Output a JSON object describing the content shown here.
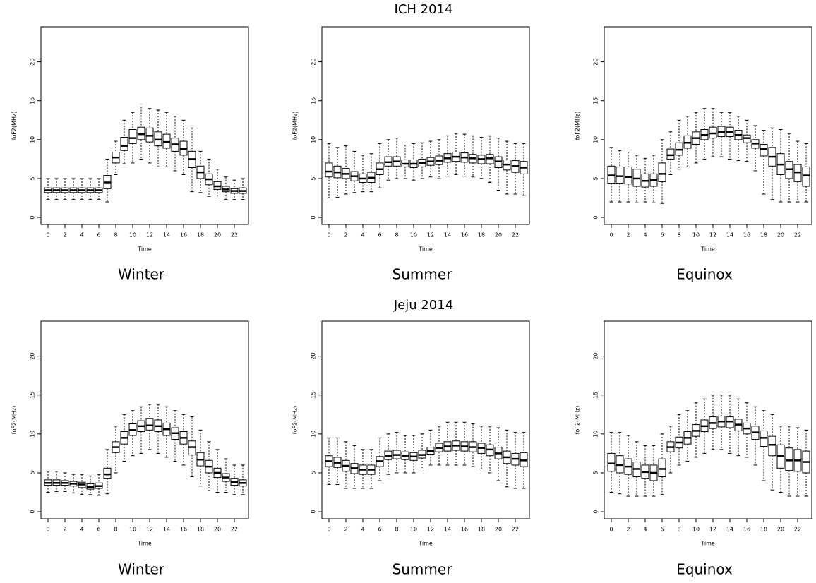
{
  "figure_titles": [
    "ICH 2014",
    "Jeju 2014"
  ],
  "chart_data": [
    {
      "type": "box",
      "caption": "Winter",
      "xlabel": "Time",
      "ylabel": "foF2(MHz)",
      "categories": [
        0,
        null,
        2,
        null,
        4,
        null,
        6,
        null,
        8,
        null,
        10,
        null,
        12,
        null,
        14,
        null,
        16,
        null,
        18,
        null,
        20,
        null,
        22,
        null
      ],
      "ylim": [
        -0.9,
        24.5
      ],
      "yticks": [
        0,
        5,
        10,
        15,
        20
      ],
      "min": [
        2.3,
        2.3,
        2.3,
        2.3,
        2.3,
        2.3,
        2.3,
        2.0,
        5.5,
        6.9,
        7.0,
        7.5,
        7.0,
        6.5,
        6.5,
        6.0,
        5.5,
        3.3,
        3.2,
        2.7,
        2.5,
        2.3,
        2.3,
        2.3
      ],
      "q1": [
        3.2,
        3.2,
        3.2,
        3.2,
        3.2,
        3.2,
        3.2,
        3.7,
        7.0,
        8.6,
        9.5,
        10.0,
        9.7,
        9.2,
        8.9,
        8.5,
        8.0,
        6.4,
        5.0,
        4.2,
        3.6,
        3.3,
        3.1,
        3.1
      ],
      "median": [
        3.5,
        3.5,
        3.5,
        3.5,
        3.5,
        3.5,
        3.5,
        4.5,
        7.7,
        9.2,
        10.2,
        10.7,
        10.5,
        10.0,
        9.7,
        9.4,
        8.8,
        7.5,
        5.8,
        4.9,
        4.0,
        3.6,
        3.4,
        3.4
      ],
      "q3": [
        3.8,
        3.8,
        3.8,
        3.8,
        3.8,
        3.8,
        3.8,
        5.4,
        8.4,
        10.3,
        11.3,
        11.6,
        11.5,
        11.0,
        10.7,
        10.2,
        9.8,
        8.5,
        6.6,
        5.6,
        4.6,
        4.0,
        3.7,
        3.8
      ],
      "max": [
        5.0,
        5.0,
        5.0,
        5.0,
        5.0,
        5.0,
        5.0,
        7.5,
        9.8,
        12.5,
        13.5,
        14.2,
        14.0,
        13.8,
        13.5,
        13.0,
        12.5,
        11.5,
        8.5,
        7.5,
        6.2,
        5.2,
        4.8,
        5.0
      ]
    },
    {
      "type": "box",
      "caption": "Summer",
      "xlabel": "Time",
      "ylabel": "foF2(MHz)",
      "categories": [
        0,
        null,
        2,
        null,
        4,
        null,
        6,
        null,
        8,
        null,
        10,
        null,
        12,
        null,
        14,
        null,
        16,
        null,
        18,
        null,
        20,
        null,
        22,
        null
      ],
      "ylim": [
        -0.9,
        24.5
      ],
      "yticks": [
        0,
        5,
        10,
        15,
        20
      ],
      "min": [
        2.5,
        2.6,
        3.0,
        3.2,
        3.3,
        3.3,
        3.8,
        4.8,
        5.0,
        5.0,
        4.8,
        5.0,
        5.2,
        5.0,
        5.3,
        5.5,
        5.3,
        5.2,
        5.0,
        4.5,
        3.5,
        3.0,
        3.0,
        2.8
      ],
      "q1": [
        5.2,
        5.1,
        5.0,
        4.7,
        4.5,
        4.5,
        5.5,
        6.6,
        6.6,
        6.5,
        6.4,
        6.5,
        6.7,
        6.8,
        7.1,
        7.2,
        7.1,
        7.0,
        6.9,
        6.9,
        6.4,
        6.1,
        5.8,
        5.6
      ],
      "median": [
        5.9,
        5.8,
        5.6,
        5.3,
        5.0,
        5.1,
        6.2,
        7.1,
        7.2,
        6.9,
        6.9,
        7.0,
        7.2,
        7.3,
        7.6,
        7.8,
        7.7,
        7.6,
        7.5,
        7.6,
        7.2,
        6.8,
        6.6,
        6.4
      ],
      "q3": [
        7.0,
        6.6,
        6.3,
        5.9,
        5.6,
        5.8,
        7.0,
        7.8,
        7.8,
        7.4,
        7.4,
        7.5,
        7.7,
        7.9,
        8.2,
        8.4,
        8.3,
        8.1,
        8.0,
        8.1,
        7.8,
        7.4,
        7.3,
        7.2
      ],
      "max": [
        9.5,
        9.0,
        9.2,
        8.5,
        8.0,
        8.2,
        9.5,
        10.0,
        10.2,
        9.3,
        9.5,
        9.6,
        9.8,
        10.0,
        10.5,
        10.8,
        10.7,
        10.5,
        10.3,
        10.5,
        10.2,
        9.8,
        9.5,
        9.5
      ]
    },
    {
      "type": "box",
      "caption": "Equinox",
      "xlabel": "Time",
      "ylabel": "foF2(MHz)",
      "categories": [
        0,
        null,
        2,
        null,
        4,
        null,
        6,
        null,
        8,
        null,
        10,
        null,
        12,
        null,
        14,
        null,
        16,
        null,
        18,
        null,
        20,
        null,
        22,
        null
      ],
      "ylim": [
        -0.9,
        24.5
      ],
      "yticks": [
        0,
        5,
        10,
        15,
        20
      ],
      "min": [
        2.0,
        2.0,
        2.0,
        1.9,
        2.0,
        1.9,
        1.8,
        5.5,
        6.2,
        6.5,
        7.0,
        7.5,
        7.8,
        7.8,
        7.5,
        7.3,
        7.2,
        6.0,
        3.0,
        2.3,
        2.0,
        2.0,
        2.0,
        2.0
      ],
      "q1": [
        4.4,
        4.4,
        4.3,
        4.0,
        3.9,
        4.0,
        4.6,
        7.5,
        8.0,
        8.9,
        9.4,
        10.0,
        10.2,
        10.4,
        10.4,
        10.0,
        9.6,
        8.9,
        7.9,
        6.6,
        5.5,
        5.0,
        4.6,
        4.0
      ],
      "median": [
        5.4,
        5.3,
        5.2,
        5.0,
        4.7,
        4.8,
        5.6,
        8.0,
        8.7,
        9.6,
        10.2,
        10.6,
        10.8,
        11.0,
        11.0,
        10.6,
        10.2,
        9.5,
        8.8,
        7.8,
        6.8,
        6.2,
        5.8,
        5.4
      ],
      "q3": [
        6.6,
        6.5,
        6.5,
        6.2,
        5.6,
        5.6,
        7.0,
        8.8,
        9.6,
        10.5,
        11.0,
        11.3,
        11.6,
        11.7,
        11.6,
        11.2,
        10.6,
        10.0,
        9.4,
        9.0,
        8.2,
        7.2,
        6.8,
        6.5
      ],
      "max": [
        9.0,
        8.6,
        8.4,
        8.0,
        7.6,
        8.0,
        10.0,
        11.0,
        12.5,
        13.0,
        13.5,
        14.0,
        14.0,
        13.5,
        13.5,
        13.0,
        12.5,
        11.8,
        11.2,
        11.5,
        11.3,
        10.8,
        9.8,
        9.5
      ]
    },
    {
      "type": "box",
      "caption": "Winter",
      "xlabel": "Time",
      "ylabel": "foF2(MHz)",
      "categories": [
        0,
        null,
        2,
        null,
        4,
        null,
        6,
        null,
        8,
        null,
        10,
        null,
        12,
        null,
        14,
        null,
        16,
        null,
        18,
        null,
        20,
        null,
        22,
        null
      ],
      "ylim": [
        -0.9,
        24.5
      ],
      "yticks": [
        0,
        5,
        10,
        15,
        20
      ],
      "min": [
        2.5,
        2.6,
        2.6,
        2.4,
        2.2,
        2.2,
        2.1,
        2.3,
        5.0,
        6.5,
        7.2,
        7.5,
        8.0,
        7.5,
        7.0,
        6.5,
        6.0,
        4.5,
        3.3,
        2.7,
        2.5,
        2.5,
        2.2,
        2.2
      ],
      "q1": [
        3.4,
        3.4,
        3.4,
        3.3,
        3.1,
        2.9,
        3.0,
        4.3,
        7.6,
        8.7,
        9.8,
        10.3,
        10.5,
        10.3,
        9.8,
        9.3,
        8.7,
        7.3,
        5.9,
        5.0,
        4.4,
        3.9,
        3.4,
        3.3
      ],
      "median": [
        3.7,
        3.7,
        3.7,
        3.6,
        3.5,
        3.2,
        3.3,
        4.8,
        8.3,
        9.5,
        10.5,
        11.0,
        11.1,
        11.0,
        10.6,
        10.1,
        9.5,
        8.3,
        6.7,
        5.8,
        5.0,
        4.4,
        3.8,
        3.7
      ],
      "q3": [
        4.1,
        4.1,
        4.0,
        3.9,
        3.8,
        3.6,
        3.7,
        5.6,
        9.0,
        10.3,
        11.3,
        11.7,
        12.0,
        11.8,
        11.4,
        10.8,
        10.3,
        9.1,
        7.6,
        6.6,
        5.6,
        4.9,
        4.3,
        4.1
      ],
      "max": [
        5.2,
        5.2,
        5.0,
        4.8,
        4.8,
        4.6,
        4.8,
        8.0,
        11.0,
        12.5,
        13.0,
        13.5,
        13.8,
        13.8,
        13.5,
        13.0,
        12.5,
        12.2,
        10.5,
        9.0,
        8.0,
        6.8,
        6.0,
        6.0
      ]
    },
    {
      "type": "box",
      "caption": "Summer",
      "xlabel": "Time",
      "ylabel": "foF2(MHz)",
      "categories": [
        0,
        null,
        2,
        null,
        4,
        null,
        6,
        null,
        8,
        null,
        10,
        null,
        12,
        null,
        14,
        null,
        16,
        null,
        18,
        null,
        20,
        null,
        22,
        null
      ],
      "ylim": [
        -0.9,
        24.5
      ],
      "yticks": [
        0,
        5,
        10,
        15,
        20
      ],
      "min": [
        3.5,
        3.5,
        3.0,
        3.0,
        3.0,
        3.0,
        4.0,
        4.8,
        5.0,
        5.0,
        5.0,
        5.5,
        6.0,
        6.0,
        6.0,
        6.0,
        6.0,
        5.8,
        5.5,
        5.0,
        4.0,
        3.2,
        3.0,
        3.0
      ],
      "q1": [
        5.8,
        5.7,
        5.2,
        4.9,
        4.8,
        4.8,
        5.8,
        6.7,
        6.8,
        6.7,
        6.6,
        6.9,
        7.4,
        7.7,
        7.8,
        7.9,
        7.8,
        7.7,
        7.5,
        7.2,
        6.8,
        6.2,
        6.0,
        5.8
      ],
      "median": [
        6.5,
        6.3,
        5.9,
        5.6,
        5.4,
        5.4,
        6.5,
        7.2,
        7.3,
        7.2,
        7.1,
        7.3,
        7.8,
        8.2,
        8.4,
        8.5,
        8.4,
        8.3,
        8.2,
        8.0,
        7.5,
        7.0,
        6.8,
        6.6
      ],
      "q3": [
        7.2,
        7.0,
        6.6,
        6.2,
        6.0,
        6.0,
        7.1,
        7.8,
        7.9,
        7.7,
        7.6,
        7.9,
        8.3,
        8.8,
        9.0,
        9.1,
        9.0,
        9.0,
        8.8,
        8.6,
        8.3,
        7.8,
        7.5,
        7.6
      ],
      "max": [
        9.5,
        9.5,
        9.0,
        8.5,
        8.0,
        8.0,
        9.5,
        10.0,
        10.2,
        9.8,
        9.8,
        10.0,
        10.5,
        11.0,
        11.5,
        11.5,
        11.5,
        11.3,
        11.0,
        11.0,
        10.8,
        10.5,
        10.2,
        10.2
      ]
    },
    {
      "type": "box",
      "caption": "Equinox",
      "xlabel": "Time",
      "ylabel": "foF2(MHz)",
      "categories": [
        0,
        null,
        2,
        null,
        4,
        null,
        6,
        null,
        8,
        null,
        10,
        null,
        12,
        null,
        14,
        null,
        16,
        null,
        18,
        null,
        20,
        null,
        22,
        null
      ],
      "ylim": [
        -0.9,
        24.5
      ],
      "yticks": [
        0,
        5,
        10,
        15,
        20
      ],
      "min": [
        2.5,
        2.3,
        2.0,
        2.0,
        2.0,
        2.0,
        2.2,
        5.0,
        6.0,
        6.5,
        7.0,
        7.5,
        8.0,
        8.0,
        7.5,
        7.2,
        7.0,
        6.0,
        4.0,
        2.8,
        2.5,
        2.0,
        2.0,
        2.0
      ],
      "q1": [
        5.2,
        5.0,
        4.8,
        4.5,
        4.3,
        4.0,
        4.5,
        7.7,
        8.2,
        8.7,
        9.7,
        10.3,
        10.7,
        10.9,
        10.8,
        10.4,
        10.0,
        9.3,
        8.4,
        7.2,
        5.6,
        5.3,
        5.2,
        5.0
      ],
      "median": [
        6.2,
        6.0,
        5.8,
        5.5,
        5.1,
        5.0,
        5.5,
        8.3,
        8.9,
        9.5,
        10.4,
        11.0,
        11.4,
        11.6,
        11.6,
        11.2,
        10.7,
        10.2,
        9.5,
        8.6,
        7.2,
        6.6,
        6.6,
        6.4
      ],
      "q3": [
        7.5,
        7.2,
        6.8,
        6.4,
        6.0,
        6.0,
        6.8,
        9.0,
        9.6,
        10.3,
        11.2,
        11.8,
        12.2,
        12.3,
        12.2,
        11.9,
        11.4,
        11.0,
        10.4,
        9.7,
        8.6,
        8.2,
        8.0,
        7.8
      ],
      "max": [
        10.2,
        10.2,
        9.8,
        9.0,
        8.5,
        8.5,
        10.0,
        11.0,
        12.5,
        13.0,
        14.0,
        14.5,
        15.0,
        15.0,
        15.0,
        14.5,
        14.0,
        13.5,
        13.0,
        12.5,
        11.0,
        11.0,
        10.8,
        10.5
      ]
    }
  ]
}
